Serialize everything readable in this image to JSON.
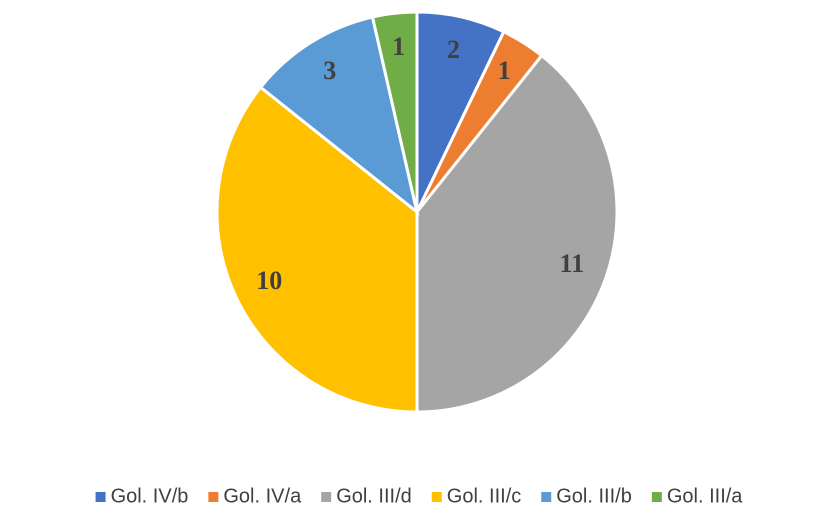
{
  "chart_data": {
    "type": "pie",
    "categories": [
      "Gol. IV/b",
      "Gol. IV/a",
      "Gol. III/d",
      "Gol. III/c",
      "Gol. III/b",
      "Gol. III/a"
    ],
    "values": [
      2,
      1,
      11,
      10,
      3,
      1
    ],
    "colors": [
      "#4472c4",
      "#ed7d31",
      "#a5a5a5",
      "#ffc000",
      "#5b9bd5",
      "#70ad47"
    ],
    "legend": "bottom"
  }
}
